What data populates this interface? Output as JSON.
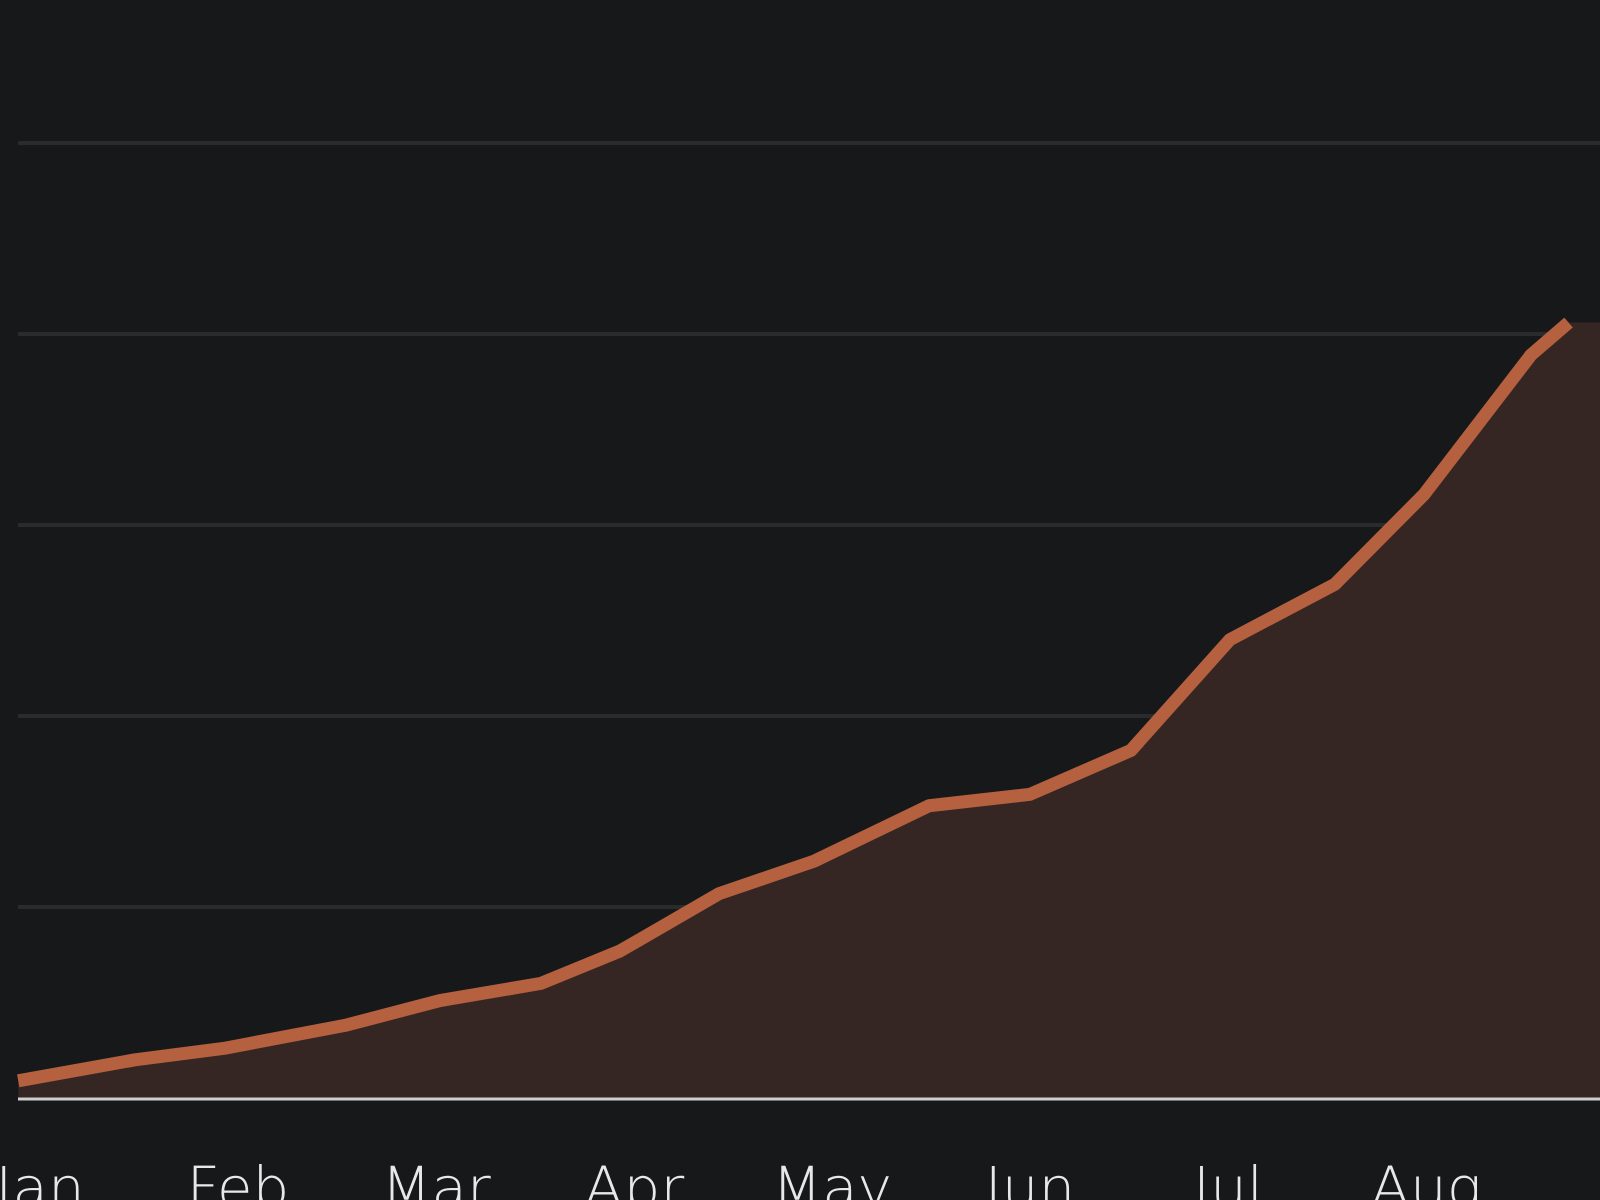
{
  "chart_data": {
    "type": "area",
    "title": "",
    "xlabel": "",
    "ylabel": "",
    "categories": [
      "Jan",
      "Feb",
      "Mar",
      "Apr",
      "May",
      "Jun",
      "Jul",
      "Aug"
    ],
    "x": [
      0.89,
      1.48,
      1.93,
      2.54,
      3.02,
      3.53,
      3.93,
      4.43,
      4.91,
      5.49,
      6.0,
      6.51,
      7.01,
      7.54,
      7.99,
      8.53,
      8.72
    ],
    "series": [
      {
        "values": [
          0.09,
          0.2,
          0.26,
          0.38,
          0.51,
          0.6,
          0.77,
          1.07,
          1.24,
          1.53,
          1.59,
          1.82,
          2.4,
          2.69,
          3.16,
          3.89,
          4.06
        ]
      }
    ],
    "ylim": [
      0,
      5
    ],
    "gridlines": [
      1,
      2,
      3,
      4,
      5
    ],
    "grid": true,
    "legend": "none",
    "colors": {
      "background": "#17181a",
      "line": "#b5603f",
      "fill": "#352623",
      "grid": "#2a2b2d",
      "baseline": "#cfcfcf"
    }
  }
}
